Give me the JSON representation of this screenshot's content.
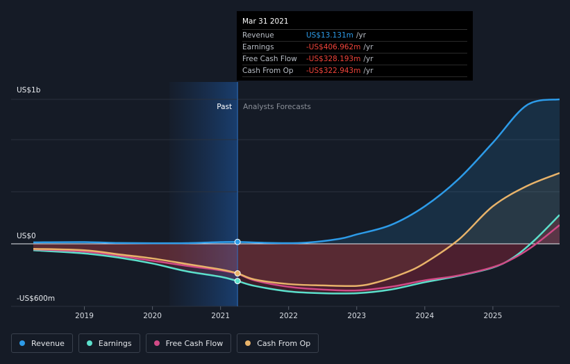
{
  "tooltip": {
    "date": "Mar 31 2021",
    "rows": [
      {
        "name": "Revenue",
        "value": "US$13.131m",
        "unit": "/yr",
        "color": "#2d9be8"
      },
      {
        "name": "Earnings",
        "value": "-US$406.962m",
        "unit": "/yr",
        "color": "#f0443a"
      },
      {
        "name": "Free Cash Flow",
        "value": "-US$328.193m",
        "unit": "/yr",
        "color": "#f0443a"
      },
      {
        "name": "Cash From Op",
        "value": "-US$322.943m",
        "unit": "/yr",
        "color": "#f0443a"
      }
    ]
  },
  "regions": {
    "past": "Past",
    "forecast": "Analysts Forecasts"
  },
  "legend": [
    {
      "label": "Revenue",
      "color": "#2d9be8"
    },
    {
      "label": "Earnings",
      "color": "#5ce0cc"
    },
    {
      "label": "Free Cash Flow",
      "color": "#d04a86"
    },
    {
      "label": "Cash From Op",
      "color": "#e8b36a"
    }
  ],
  "chart_data": {
    "type": "line",
    "title": "",
    "xlabel": "",
    "ylabel": "",
    "y_tick_labels": [
      {
        "value": 1000,
        "label": "US$1b"
      },
      {
        "value": 0,
        "label": "US$0"
      },
      {
        "value": -600,
        "label": "-US$600m"
      }
    ],
    "x_tick_labels": [
      "2019",
      "2020",
      "2021",
      "2022",
      "2023",
      "2024",
      "2025"
    ],
    "xlim": [
      2018.25,
      2025.98
    ],
    "ylim": [
      -600,
      1000
    ],
    "past_shade_start": 2020.25,
    "divider_x": 2021.25,
    "highlight_points": [
      {
        "series": "Revenue",
        "x": 2021.25,
        "y": 13.131
      },
      {
        "series": "Earnings",
        "x": 2021.25,
        "y": -406.962
      },
      {
        "series": "Cash From Op",
        "x": 2021.25,
        "y": -322.943
      }
    ],
    "series": [
      {
        "name": "Revenue",
        "color": "#2d9be8",
        "x": [
          2018.25,
          2019.0,
          2019.5,
          2020.0,
          2020.5,
          2021.0,
          2021.25,
          2021.75,
          2022.25,
          2022.75,
          2023.0,
          2023.5,
          2024.0,
          2024.5,
          2025.0,
          2025.5,
          2025.98
        ],
        "y": [
          10,
          12,
          6,
          4,
          5,
          12,
          13.131,
          6,
          8,
          35,
          65,
          130,
          260,
          450,
          700,
          960,
          1000
        ]
      },
      {
        "name": "Earnings",
        "color": "#5ce0cc",
        "x": [
          2018.25,
          2019.0,
          2019.5,
          2020.0,
          2020.5,
          2021.0,
          2021.25,
          2021.5,
          2022.0,
          2022.5,
          2023.0,
          2023.5,
          2024.0,
          2024.5,
          2025.0,
          2025.3,
          2025.6,
          2025.98
        ],
        "y": [
          -70,
          -105,
          -150,
          -215,
          -300,
          -360,
          -406.962,
          -460,
          -520,
          -540,
          -540,
          -500,
          -420,
          -350,
          -260,
          -150,
          20,
          200
        ]
      },
      {
        "name": "Free Cash Flow",
        "color": "#d04a86",
        "x": [
          2018.25,
          2019.0,
          2019.5,
          2020.0,
          2020.5,
          2021.0,
          2021.25,
          2021.5,
          2022.0,
          2022.5,
          2023.0,
          2023.5,
          2024.0,
          2024.5,
          2025.0,
          2025.3,
          2025.6,
          2025.98
        ],
        "y": [
          -60,
          -85,
          -130,
          -185,
          -240,
          -290,
          -328.193,
          -400,
          -470,
          -500,
          -510,
          -470,
          -400,
          -345,
          -255,
          -160,
          -20,
          130
        ]
      },
      {
        "name": "Cash From Op",
        "color": "#e8b36a",
        "x": [
          2018.25,
          2019.0,
          2019.5,
          2020.0,
          2020.5,
          2021.0,
          2021.25,
          2021.5,
          2022.0,
          2022.5,
          2023.0,
          2023.3,
          2023.7,
          2024.0,
          2024.5,
          2025.0,
          2025.5,
          2025.98
        ],
        "y": [
          -55,
          -70,
          -115,
          -160,
          -220,
          -280,
          -322.943,
          -390,
          -440,
          -455,
          -460,
          -420,
          -320,
          -210,
          30,
          260,
          400,
          490
        ]
      }
    ]
  }
}
